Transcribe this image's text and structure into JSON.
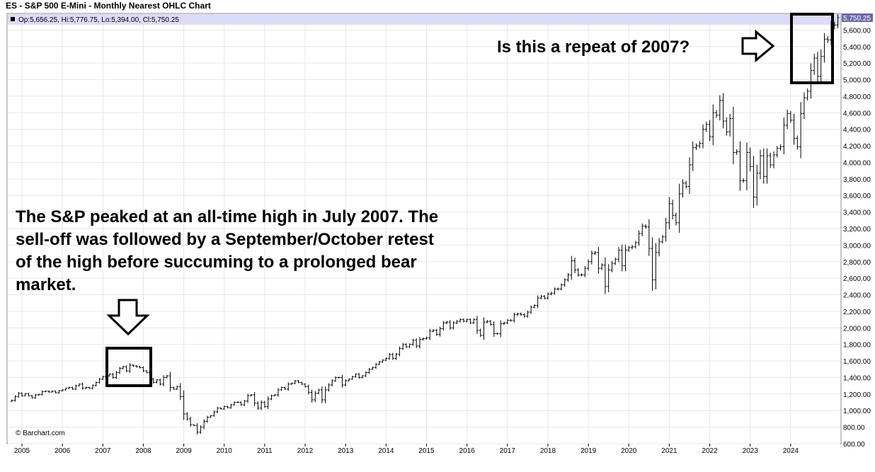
{
  "title": "ES - S&P 500 E-Mini - Monthly Nearest OHLC Chart",
  "legend_text": "Op:5,656.25, Hi:5,776.75, Lo:5,394.00, Cl:5,750.25",
  "last_price_label": "5,750.25",
  "watermark": "© Barchart.com",
  "annotations": {
    "peak_2007": "The S&P peaked at an all-time high in July 2007. The sell-off was followed by a September/October retest of the high before succuming to a prolonged bear market.",
    "repeat_question": "Is this a repeat of 2007?"
  },
  "colors": {
    "bars": "#000000",
    "legend_band": "#dcdcf8",
    "grid": "#e6e6e6",
    "last_price": "#6a6aa8"
  },
  "chart_data": {
    "type": "ohlc",
    "title": "ES - S&P 500 E-Mini - Monthly Nearest OHLC Chart",
    "ylim": [
      600,
      5800
    ],
    "yticks": [
      600,
      800,
      1000,
      1200,
      1400,
      1600,
      1800,
      2000,
      2200,
      2400,
      2600,
      2800,
      3000,
      3200,
      3400,
      3600,
      3800,
      4000,
      4200,
      4400,
      4600,
      4800,
      5000,
      5200,
      5400,
      5600
    ],
    "ytick_labels": [
      "600.00",
      "800.00",
      "1,000.00",
      "1,200.00",
      "1,400.00",
      "1,600.00",
      "1,800.00",
      "2,000.00",
      "2,200.00",
      "2,400.00",
      "2,600.00",
      "2,800.00",
      "3,000.00",
      "3,200.00",
      "3,400.00",
      "3,600.00",
      "3,800.00",
      "4,000.00",
      "4,200.00",
      "4,400.00",
      "4,600.00",
      "4,800.00",
      "5,000.00",
      "5,200.00",
      "5,400.00",
      "5,600.00"
    ],
    "xticks": [
      "2005",
      "2006",
      "2007",
      "2008",
      "2009",
      "2010",
      "2011",
      "2012",
      "2013",
      "2014",
      "2015",
      "2016",
      "2017",
      "2018",
      "2019",
      "2020",
      "2021",
      "2022",
      "2023",
      "2024"
    ],
    "x_start": "2004-10",
    "grid": true,
    "closes": [
      1125,
      1170,
      1210,
      1180,
      1205,
      1180,
      1155,
      1190,
      1195,
      1230,
      1235,
      1225,
      1235,
      1215,
      1240,
      1250,
      1270,
      1280,
      1260,
      1300,
      1320,
      1270,
      1280,
      1270,
      1305,
      1340,
      1380,
      1410,
      1420,
      1440,
      1400,
      1460,
      1510,
      1530,
      1480,
      1550,
      1540,
      1530,
      1520,
      1480,
      1460,
      1380,
      1340,
      1370,
      1320,
      1400,
      1420,
      1280,
      1260,
      1290,
      1170,
      960,
      900,
      830,
      820,
      740,
      800,
      870,
      920,
      940,
      985,
      1030,
      1020,
      1050,
      1035,
      1070,
      1100,
      1100,
      1070,
      1115,
      1180,
      1190,
      1090,
      1030,
      1100,
      1050,
      1140,
      1180,
      1190,
      1250,
      1280,
      1260,
      1320,
      1330,
      1360,
      1340,
      1320,
      1290,
      1220,
      1130,
      1210,
      1250,
      1130,
      1250,
      1310,
      1360,
      1400,
      1400,
      1310,
      1360,
      1380,
      1410,
      1440,
      1400,
      1420,
      1460,
      1500,
      1520,
      1560,
      1590,
      1610,
      1630,
      1680,
      1630,
      1680,
      1750,
      1800,
      1770,
      1800,
      1850,
      1780,
      1860,
      1870,
      1880,
      1960,
      1970,
      1920,
      1990,
      2060,
      2070,
      2000,
      2060,
      2080,
      2100,
      2080,
      2100,
      2060,
      2100,
      1970,
      1910,
      2070,
      2080,
      2040,
      1930,
      1930,
      2050,
      2060,
      2090,
      2090,
      2160,
      2170,
      2160,
      2140,
      2190,
      2250,
      2270,
      2360,
      2380,
      2360,
      2410,
      2420,
      2470,
      2470,
      2520,
      2580,
      2640,
      2810,
      2700,
      2640,
      2640,
      2720,
      2800,
      2900,
      2910,
      2720,
      2760,
      2500,
      2700,
      2780,
      2830,
      2940,
      2750,
      2940,
      2970,
      2980,
      3030,
      3140,
      3230,
      3220,
      2960,
      2580,
      2910,
      3040,
      3100,
      3270,
      3500,
      3360,
      3270,
      3620,
      3750,
      3710,
      3970,
      4180,
      4200,
      4230,
      4400,
      4460,
      4310,
      4600,
      4570,
      4750,
      4500,
      4370,
      4530,
      4120,
      4130,
      3780,
      3780,
      4120,
      3950,
      3580,
      3870,
      4080,
      3830,
      4080,
      3970,
      4090,
      4170,
      4190,
      4450,
      4590,
      4510,
      4290,
      4190,
      4590,
      4780,
      4860,
      5110,
      5260,
      5040,
      5280,
      5490,
      5480,
      5650,
      5660,
      5750
    ]
  }
}
